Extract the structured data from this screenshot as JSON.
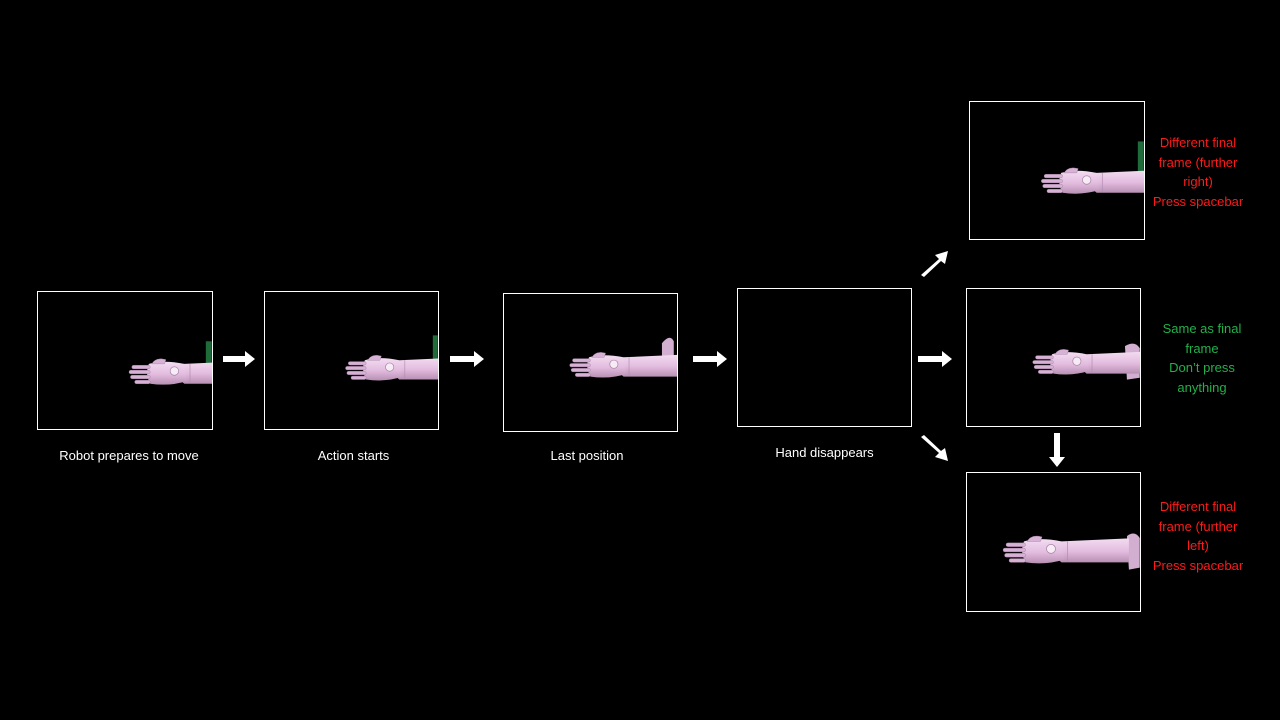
{
  "colors": {
    "background": "#000000",
    "frame_border": "#ffffff",
    "caption_text": "#ffffff",
    "warning_text": "#ff1a1a",
    "ok_text": "#22b04a",
    "hand_color": "#e7c4e4",
    "arrow_color": "#ffffff"
  },
  "sequence": [
    {
      "caption": "Robot prepares to move"
    },
    {
      "caption": "Action starts"
    },
    {
      "caption": "Last position"
    },
    {
      "caption": "Hand disappears"
    }
  ],
  "outcomes": {
    "right": {
      "lines": [
        "Different final",
        "frame (further",
        "right)",
        "Press spacebar"
      ]
    },
    "same": {
      "lines": [
        "Same as final",
        "frame",
        "Don’t press",
        "anything"
      ]
    },
    "left": {
      "lines": [
        "Different final",
        "frame (further",
        "left)",
        "Press spacebar"
      ]
    }
  }
}
